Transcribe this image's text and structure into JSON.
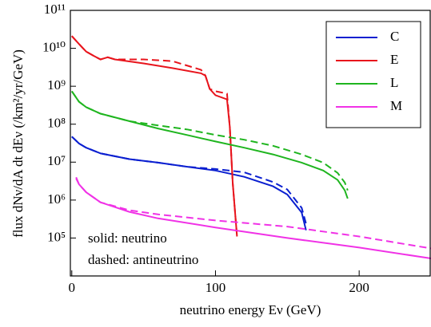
{
  "chart_data": {
    "type": "line",
    "log_y": true,
    "x_label": "neutrino energy Eν (GeV)",
    "y_label": "flux dNν/dA dt dEν (/km²/yr/GeV)",
    "annotations": [
      "solid: neutrino",
      "dashed: antineutrino"
    ],
    "legend": "upper right",
    "xlim": [
      -1,
      250
    ],
    "xticks": [
      0,
      100,
      200
    ],
    "ylim": [
      10000,
      100000000000
    ],
    "yticks": [
      {
        "value": 100000,
        "label": "10⁵"
      },
      {
        "value": 1000000,
        "label": "10⁶"
      },
      {
        "value": 10000000,
        "label": "10⁷"
      },
      {
        "value": 100000000,
        "label": "10⁸"
      },
      {
        "value": 1000000000,
        "label": "10⁹"
      },
      {
        "value": 10000000000,
        "label": "10¹⁰"
      },
      {
        "value": 100000000000,
        "label": "10¹¹"
      }
    ],
    "series": [
      {
        "name": "C",
        "color": "#0a1fd0",
        "x": [
          0,
          5,
          10,
          20,
          40,
          60,
          80,
          100,
          120,
          140,
          150,
          160,
          163
        ],
        "values": [
          47000000,
          31000000,
          24000000,
          17000000,
          12000000,
          9700000,
          7600000,
          6000000,
          4100000,
          2300000,
          1400000,
          470000,
          160000
        ],
        "anti_values": [
          47000000,
          31000000,
          24000000,
          17000000,
          12000000,
          9700000,
          7600000,
          6600000,
          5400000,
          3000000,
          1900000,
          620000,
          240000
        ]
      },
      {
        "name": "E",
        "color": "#e8141c",
        "x": [
          0,
          5,
          10,
          15,
          20,
          25,
          30,
          50,
          70,
          90,
          93,
          96,
          100,
          108,
          110,
          112,
          115
        ],
        "values": [
          21000000000,
          13000000000,
          8200000000,
          6400000000,
          5100000000,
          5800000000,
          5100000000,
          4000000000,
          3000000000,
          2200000000,
          1900000000,
          850000000,
          580000000,
          450000000,
          85000000,
          2900000,
          110000
        ],
        "anti_values": [
          21000000000,
          13000000000,
          8200000000,
          6400000000,
          5100000000,
          5800000000,
          5100000000,
          5100000000,
          4600000000,
          2700000000,
          1900000000,
          850000000,
          740000000,
          640000000,
          85000000,
          2900000,
          110000
        ]
      },
      {
        "name": "L",
        "color": "#1fb51f",
        "x": [
          0,
          5,
          10,
          20,
          40,
          60,
          80,
          100,
          120,
          140,
          160,
          175,
          185,
          190,
          192
        ],
        "values": [
          740000000,
          390000000,
          280000000,
          190000000,
          120000000,
          77000000,
          52000000,
          35000000,
          24000000,
          16000000,
          9700000,
          6000000,
          3400000,
          1800000,
          1100000
        ],
        "anti_values": [
          740000000,
          390000000,
          280000000,
          190000000,
          120000000,
          93000000,
          73000000,
          52000000,
          39000000,
          27000000,
          16000000,
          9700000,
          5200000,
          2900000,
          1800000
        ]
      },
      {
        "name": "M",
        "color": "#f032e6",
        "x": [
          3,
          5,
          10,
          20,
          40,
          60,
          100,
          150,
          200,
          250
        ],
        "values": [
          3700000,
          2600000,
          1600000,
          870000,
          490000,
          330000,
          190000,
          100000,
          56000,
          29000
        ],
        "anti_values": [
          4000000,
          2600000,
          1600000,
          870000,
          540000,
          420000,
          290000,
          200000,
          110000,
          53000
        ]
      }
    ]
  }
}
